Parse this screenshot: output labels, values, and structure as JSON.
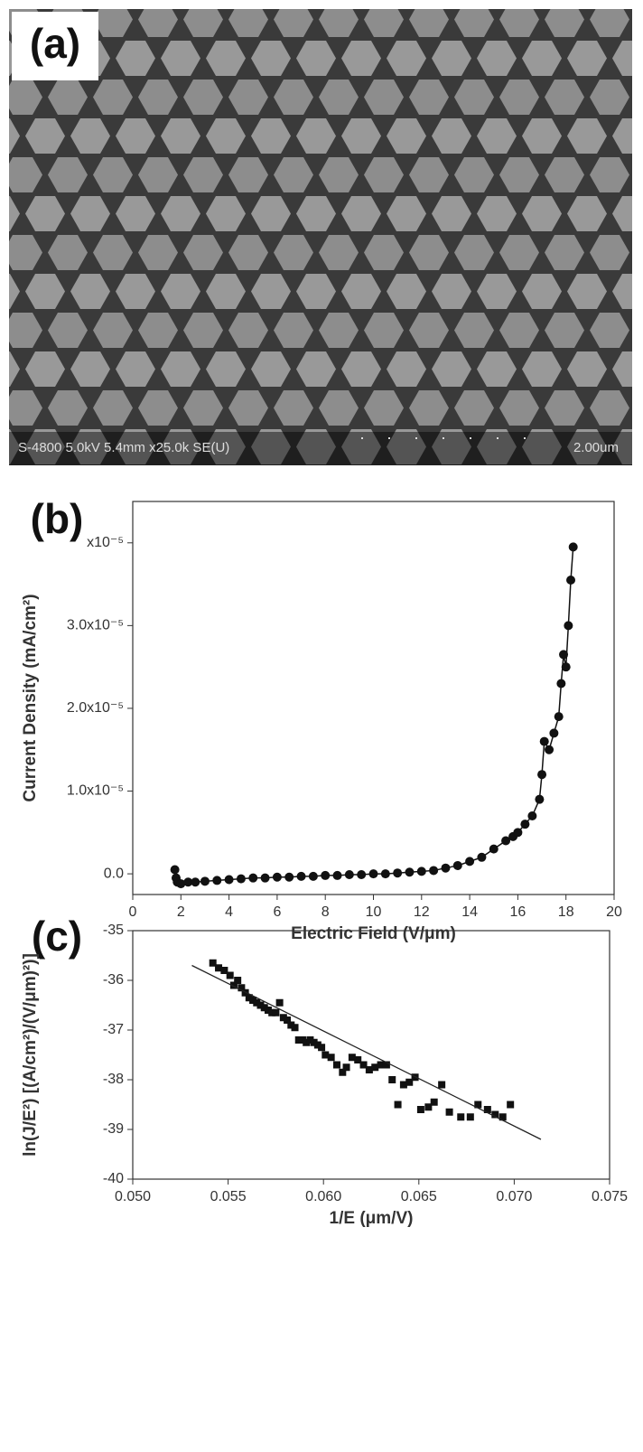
{
  "panel_a": {
    "label": "(a)",
    "info": "S-4800 5.0kV 5.4mm x25.0k SE(U)",
    "scale": "2.00um"
  },
  "chart_data": [
    {
      "type": "line",
      "title": "(b)",
      "x_label": "Electric Field (V/μm)",
      "y_label": "Current Density (mA/cm²)",
      "xlim": [
        0,
        20
      ],
      "xticks": [
        0,
        2,
        4,
        6,
        8,
        10,
        12,
        14,
        16,
        18,
        20
      ],
      "ylim": [
        -2.5e-06,
        4.5e-05
      ],
      "yticks": [
        {
          "value": 0,
          "label": "0.0"
        },
        {
          "value": 1e-05,
          "label": "1.0x10⁻⁵"
        },
        {
          "value": 2e-05,
          "label": "2.0x10⁻⁵"
        },
        {
          "value": 3e-05,
          "label": "3.0x10⁻⁵"
        },
        {
          "value": 4e-05,
          "label": "x10⁻⁵"
        }
      ],
      "series": [
        {
          "color": "#111111",
          "x": [
            1.75,
            1.8,
            1.85,
            2.0,
            2.3,
            2.6,
            3.0,
            3.5,
            4.0,
            4.5,
            5.0,
            5.5,
            6.0,
            6.5,
            7.0,
            7.5,
            8.0,
            8.5,
            9.0,
            9.5,
            10.0,
            10.5,
            11.0,
            11.5,
            12.0,
            12.5,
            13.0,
            13.5,
            14.0,
            14.5,
            15.0,
            15.5,
            15.8,
            16.0,
            16.3,
            16.6,
            16.9,
            17.0,
            17.1,
            17.3,
            17.5,
            17.7,
            17.8,
            17.9,
            18.0,
            18.1,
            18.2,
            18.3
          ],
          "values": [
            5e-07,
            -5e-07,
            -1e-06,
            -1.2e-06,
            -1e-06,
            -1e-06,
            -9e-07,
            -8e-07,
            -7e-07,
            -6e-07,
            -5e-07,
            -5e-07,
            -4e-07,
            -4e-07,
            -3e-07,
            -3e-07,
            -2e-07,
            -2e-07,
            -1e-07,
            -1e-07,
            0,
            0,
            1e-07,
            2e-07,
            3e-07,
            4e-07,
            7e-07,
            1e-06,
            1.5e-06,
            2e-06,
            3e-06,
            4e-06,
            4.5e-06,
            5e-06,
            6e-06,
            7e-06,
            9e-06,
            1.2e-05,
            1.6e-05,
            1.5e-05,
            1.7e-05,
            1.9e-05,
            2.3e-05,
            2.65e-05,
            2.5e-05,
            3e-05,
            3.55e-05,
            3.95e-05
          ]
        }
      ]
    },
    {
      "type": "scatter",
      "title": "(c)",
      "x_label": "1/E (μm/V)",
      "y_label": "ln(J/E²) [(A/cm²)/(V/μm)²)]",
      "xlim": [
        0.05,
        0.075
      ],
      "xticks": [
        {
          "value": 0.05,
          "label": "0.050"
        },
        {
          "value": 0.055,
          "label": "0.055"
        },
        {
          "value": 0.06,
          "label": "0.060"
        },
        {
          "value": 0.065,
          "label": "0.065"
        },
        {
          "value": 0.07,
          "label": "0.070"
        },
        {
          "value": 0.075,
          "label": "0.075"
        }
      ],
      "ylim": [
        -40,
        -35
      ],
      "yticks": [
        -40,
        -39,
        -38,
        -37,
        -36,
        -35
      ],
      "series": [
        {
          "color": "#111111",
          "x": [
            0.0542,
            0.0545,
            0.0548,
            0.0551,
            0.0553,
            0.0555,
            0.0557,
            0.0559,
            0.0561,
            0.0563,
            0.0565,
            0.0567,
            0.0569,
            0.0571,
            0.0573,
            0.0575,
            0.0577,
            0.0579,
            0.0581,
            0.0583,
            0.0585,
            0.0587,
            0.0589,
            0.0591,
            0.0593,
            0.0595,
            0.0597,
            0.0599,
            0.0601,
            0.0604,
            0.0607,
            0.061,
            0.0612,
            0.0615,
            0.0618,
            0.0621,
            0.0624,
            0.0627,
            0.063,
            0.0633,
            0.0636,
            0.0639,
            0.0642,
            0.0645,
            0.0648,
            0.0651,
            0.0655,
            0.0658,
            0.0662,
            0.0666,
            0.0672,
            0.0677,
            0.0681,
            0.0686,
            0.069,
            0.0694,
            0.0698
          ],
          "values": [
            -35.65,
            -35.75,
            -35.8,
            -35.9,
            -36.1,
            -36.0,
            -36.15,
            -36.25,
            -36.35,
            -36.4,
            -36.45,
            -36.5,
            -36.55,
            -36.6,
            -36.65,
            -36.65,
            -36.45,
            -36.75,
            -36.8,
            -36.9,
            -36.95,
            -37.2,
            -37.2,
            -37.25,
            -37.2,
            -37.25,
            -37.3,
            -37.35,
            -37.5,
            -37.55,
            -37.7,
            -37.85,
            -37.75,
            -37.55,
            -37.6,
            -37.7,
            -37.8,
            -37.75,
            -37.7,
            -37.7,
            -38.0,
            -38.5,
            -38.1,
            -38.05,
            -37.95,
            -38.6,
            -38.55,
            -38.45,
            -38.1,
            -38.65,
            -38.75,
            -38.75,
            -38.5,
            -38.6,
            -38.7,
            -38.75,
            -38.5
          ]
        }
      ],
      "fit": {
        "x": [
          0.0531,
          0.0714
        ],
        "y": [
          -35.7,
          -39.2
        ]
      }
    }
  ]
}
